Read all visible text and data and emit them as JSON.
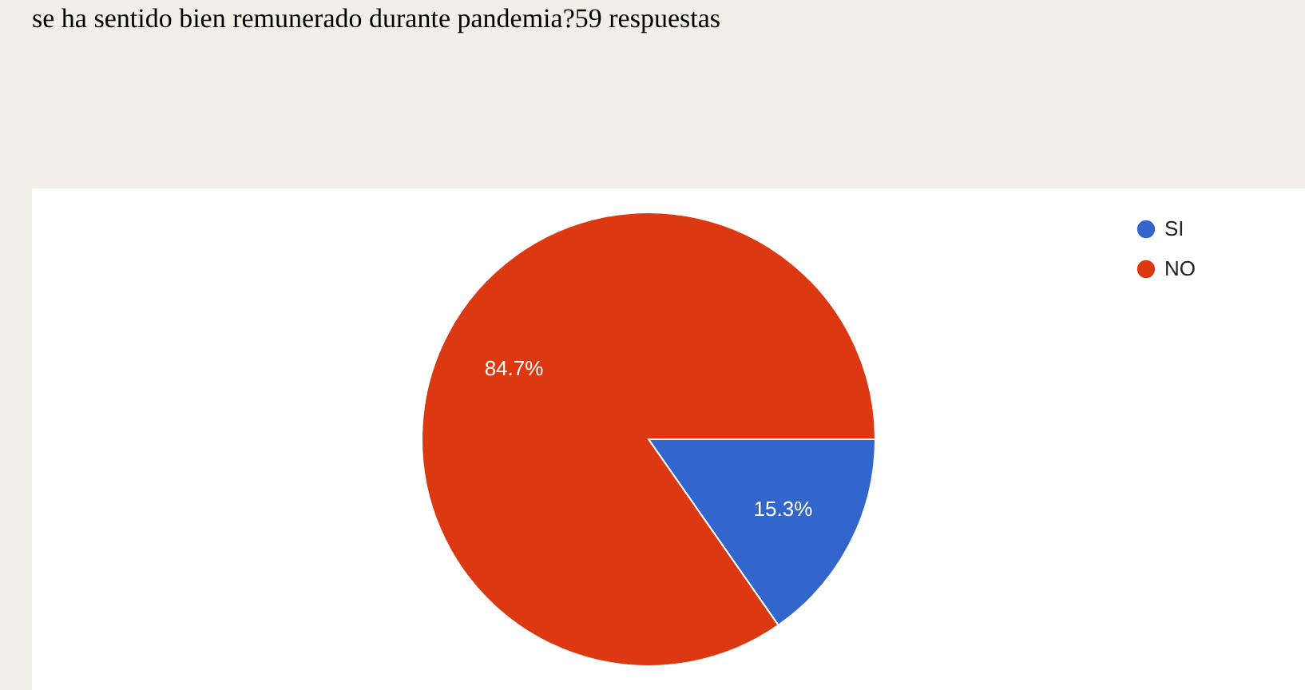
{
  "chart_data": {
    "type": "pie",
    "title": "se ha sentido bien remunerado durante pandemia?59 respuestas",
    "categories": [
      "SI",
      "NO"
    ],
    "values": [
      15.3,
      84.7
    ],
    "colors": [
      "#3366cc",
      "#dc3912"
    ],
    "value_labels": [
      "15.3%",
      "84.7%"
    ],
    "legend": "top right"
  }
}
